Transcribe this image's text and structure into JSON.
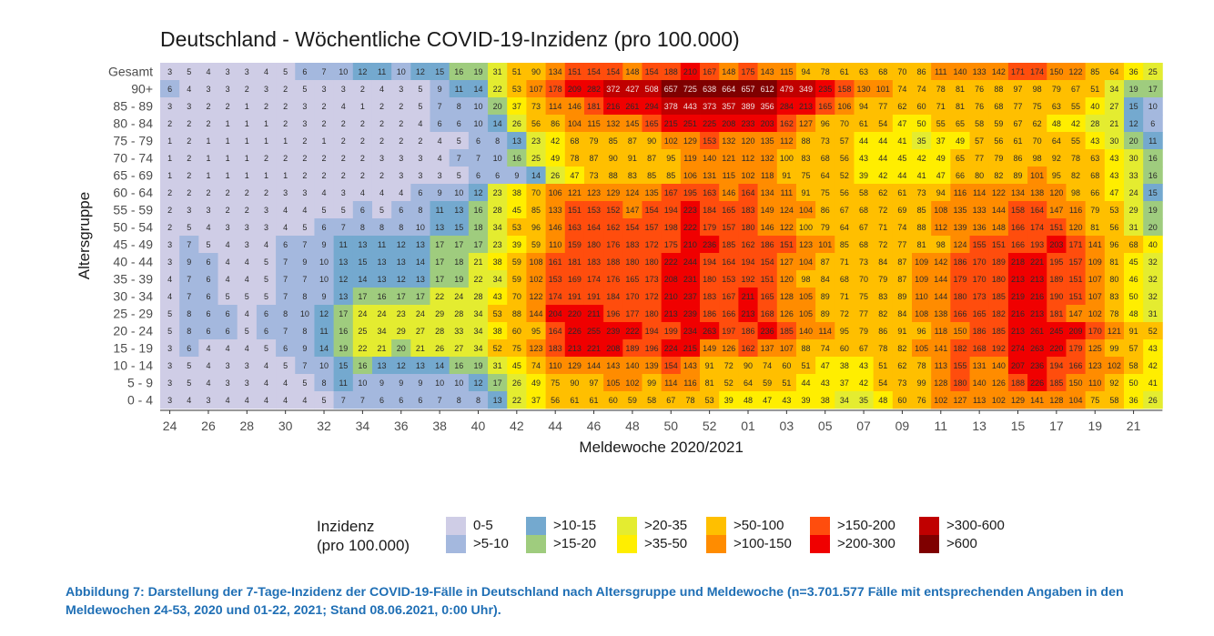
{
  "chart_data": {
    "type": "heatmap",
    "title": "Deutschland - Wöchentliche COVID-19-Inzidenz (pro 100.000)",
    "xlabel": "Meldewoche 2020/2021",
    "ylabel": "Altersgruppe",
    "weeks": [
      "24",
      "25",
      "26",
      "27",
      "28",
      "29",
      "30",
      "31",
      "32",
      "33",
      "34",
      "35",
      "36",
      "37",
      "38",
      "39",
      "40",
      "41",
      "42",
      "43",
      "44",
      "45",
      "46",
      "47",
      "48",
      "49",
      "50",
      "51",
      "52",
      "53",
      "01",
      "02",
      "03",
      "04",
      "05",
      "06",
      "07",
      "08",
      "09",
      "10",
      "11",
      "12",
      "13",
      "14",
      "15",
      "16",
      "17",
      "18",
      "19",
      "20",
      "21",
      "22"
    ],
    "x_tick_labels": [
      "24",
      "26",
      "28",
      "30",
      "32",
      "34",
      "36",
      "38",
      "40",
      "42",
      "44",
      "46",
      "48",
      "50",
      "52",
      "01",
      "03",
      "05",
      "07",
      "09",
      "11",
      "13",
      "15",
      "17",
      "19",
      "21"
    ],
    "rows": [
      {
        "label": "Gesamt",
        "values": [
          3,
          5,
          4,
          3,
          3,
          4,
          5,
          6,
          7,
          10,
          12,
          11,
          10,
          12,
          15,
          16,
          19,
          31,
          51,
          90,
          134,
          151,
          154,
          154,
          148,
          154,
          188,
          210,
          167,
          148,
          175,
          143,
          115,
          94,
          78,
          61,
          63,
          68,
          70,
          86,
          111,
          140,
          133,
          142,
          171,
          174,
          150,
          122,
          85,
          64,
          36,
          25
        ]
      },
      {
        "label": "90+",
        "values": [
          6,
          4,
          3,
          3,
          2,
          3,
          2,
          5,
          3,
          3,
          2,
          4,
          3,
          5,
          9,
          11,
          14,
          22,
          53,
          107,
          178,
          209,
          282,
          372,
          427,
          508,
          657,
          725,
          638,
          664,
          657,
          612,
          479,
          349,
          235,
          158,
          130,
          101,
          74,
          74,
          78,
          81,
          76,
          88,
          97,
          98,
          79,
          67,
          51,
          34,
          19,
          17
        ]
      },
      {
        "label": "85 - 89",
        "values": [
          3,
          3,
          2,
          2,
          1,
          2,
          2,
          3,
          2,
          4,
          1,
          2,
          2,
          5,
          7,
          8,
          10,
          20,
          37,
          73,
          114,
          146,
          181,
          216,
          261,
          294,
          378,
          443,
          373,
          357,
          389,
          356,
          284,
          213,
          165,
          106,
          94,
          77,
          62,
          60,
          71,
          81,
          76,
          68,
          77,
          75,
          63,
          55,
          40,
          27,
          15,
          10
        ]
      },
      {
        "label": "80 - 84",
        "values": [
          2,
          2,
          2,
          1,
          1,
          1,
          2,
          3,
          2,
          2,
          2,
          2,
          2,
          4,
          6,
          6,
          10,
          14,
          26,
          56,
          86,
          104,
          115,
          132,
          145,
          165,
          215,
          251,
          225,
          208,
          233,
          203,
          162,
          127,
          96,
          70,
          61,
          54,
          47,
          50,
          55,
          65,
          58,
          59,
          67,
          62,
          48,
          42,
          28,
          21,
          12,
          6
        ]
      },
      {
        "label": "75 - 79",
        "values": [
          1,
          2,
          1,
          1,
          1,
          1,
          1,
          2,
          1,
          2,
          2,
          2,
          2,
          2,
          4,
          5,
          6,
          8,
          13,
          23,
          42,
          68,
          79,
          85,
          87,
          90,
          102,
          129,
          153,
          132,
          120,
          135,
          112,
          88,
          73,
          57,
          44,
          44,
          41,
          35,
          37,
          49,
          57,
          56,
          61,
          70,
          64,
          55,
          43,
          30,
          20,
          11
        ]
      },
      {
        "label": "70 - 74",
        "values": [
          1,
          2,
          1,
          1,
          1,
          2,
          2,
          2,
          2,
          2,
          2,
          3,
          3,
          3,
          4,
          7,
          7,
          10,
          16,
          25,
          49,
          78,
          87,
          90,
          91,
          87,
          95,
          119,
          140,
          121,
          112,
          132,
          100,
          83,
          68,
          56,
          43,
          44,
          45,
          42,
          49,
          65,
          77,
          79,
          86,
          98,
          92,
          78,
          63,
          43,
          30,
          16
        ]
      },
      {
        "label": "65 - 69",
        "values": [
          1,
          2,
          1,
          1,
          1,
          1,
          1,
          2,
          2,
          2,
          2,
          2,
          3,
          3,
          3,
          5,
          6,
          6,
          9,
          14,
          26,
          47,
          73,
          88,
          83,
          85,
          85,
          106,
          131,
          115,
          102,
          118,
          91,
          75,
          64,
          52,
          39,
          42,
          44,
          41,
          47,
          66,
          80,
          82,
          89,
          101,
          95,
          82,
          68,
          43,
          33,
          16
        ]
      },
      {
        "label": "60 - 64",
        "values": [
          2,
          2,
          2,
          2,
          2,
          2,
          3,
          3,
          4,
          3,
          4,
          4,
          4,
          6,
          9,
          10,
          12,
          23,
          38,
          70,
          106,
          121,
          123,
          129,
          124,
          135,
          167,
          195,
          163,
          146,
          164,
          134,
          111,
          91,
          75,
          56,
          58,
          62,
          61,
          73,
          94,
          116,
          114,
          122,
          134,
          138,
          120,
          98,
          66,
          47,
          24,
          15
        ]
      },
      {
        "label": "55 - 59",
        "values": [
          2,
          3,
          3,
          2,
          2,
          3,
          4,
          4,
          5,
          5,
          6,
          5,
          6,
          8,
          11,
          13,
          16,
          28,
          45,
          85,
          133,
          151,
          153,
          152,
          147,
          154,
          194,
          223,
          184,
          165,
          183,
          149,
          124,
          104,
          86,
          67,
          68,
          72,
          69,
          85,
          108,
          135,
          133,
          144,
          158,
          164,
          147,
          116,
          79,
          53,
          29,
          19
        ]
      },
      {
        "label": "50 - 54",
        "values": [
          2,
          5,
          4,
          3,
          3,
          3,
          4,
          5,
          6,
          7,
          8,
          8,
          8,
          10,
          13,
          15,
          18,
          34,
          53,
          96,
          146,
          163,
          164,
          162,
          154,
          157,
          198,
          222,
          179,
          157,
          180,
          146,
          122,
          100,
          79,
          64,
          67,
          71,
          74,
          88,
          112,
          139,
          136,
          148,
          166,
          174,
          151,
          120,
          81,
          56,
          31,
          20
        ]
      },
      {
        "label": "45 - 49",
        "values": [
          3,
          7,
          5,
          4,
          3,
          4,
          6,
          7,
          9,
          11,
          13,
          11,
          12,
          13,
          17,
          17,
          17,
          23,
          39,
          59,
          110,
          159,
          180,
          176,
          183,
          172,
          175,
          210,
          236,
          185,
          162,
          186,
          151,
          123,
          101,
          85,
          68,
          72,
          77,
          81,
          98,
          124,
          155,
          151,
          166,
          193,
          203,
          171,
          141,
          96,
          68,
          40
        ]
      },
      {
        "label": "40 - 44",
        "values": [
          3,
          9,
          6,
          4,
          4,
          5,
          7,
          9,
          10,
          13,
          15,
          13,
          13,
          14,
          17,
          18,
          21,
          38,
          59,
          108,
          161,
          181,
          183,
          188,
          180,
          180,
          222,
          244,
          194,
          164,
          194,
          154,
          127,
          104,
          87,
          71,
          73,
          84,
          87,
          109,
          142,
          186,
          170,
          189,
          218,
          221,
          195,
          157,
          109,
          81,
          45,
          32
        ]
      },
      {
        "label": "35 - 39",
        "values": [
          4,
          7,
          6,
          4,
          4,
          5,
          7,
          7,
          10,
          12,
          14,
          13,
          12,
          13,
          17,
          19,
          22,
          34,
          59,
          102,
          153,
          169,
          174,
          176,
          165,
          173,
          208,
          231,
          180,
          153,
          192,
          151,
          120,
          98,
          84,
          68,
          70,
          79,
          87,
          109,
          144,
          179,
          170,
          180,
          213,
          213,
          189,
          151,
          107,
          80,
          46,
          32
        ]
      },
      {
        "label": "30 - 34",
        "values": [
          4,
          7,
          6,
          5,
          5,
          5,
          7,
          8,
          9,
          13,
          17,
          16,
          17,
          17,
          22,
          24,
          28,
          43,
          70,
          122,
          174,
          191,
          191,
          184,
          170,
          172,
          210,
          237,
          183,
          167,
          211,
          165,
          128,
          105,
          89,
          71,
          75,
          83,
          89,
          110,
          144,
          180,
          173,
          185,
          219,
          216,
          190,
          151,
          107,
          83,
          50,
          32
        ]
      },
      {
        "label": "25 - 29",
        "values": [
          5,
          8,
          6,
          6,
          4,
          6,
          8,
          10,
          12,
          17,
          24,
          24,
          23,
          24,
          29,
          28,
          34,
          53,
          88,
          144,
          204,
          220,
          211,
          196,
          177,
          180,
          213,
          239,
          186,
          166,
          213,
          168,
          126,
          105,
          89,
          72,
          77,
          82,
          84,
          108,
          138,
          166,
          165,
          182,
          216,
          213,
          181,
          147,
          102,
          78,
          48,
          31
        ]
      },
      {
        "label": "20 - 24",
        "values": [
          5,
          8,
          6,
          6,
          5,
          6,
          7,
          8,
          11,
          16,
          25,
          34,
          29,
          27,
          28,
          33,
          34,
          38,
          60,
          95,
          164,
          226,
          255,
          239,
          222,
          194,
          199,
          234,
          263,
          197,
          186,
          236,
          185,
          140,
          114,
          95,
          79,
          86,
          91,
          96,
          118,
          150,
          186,
          185,
          213,
          261,
          245,
          209,
          170,
          121,
          91,
          52
        ]
      },
      {
        "label": "15 - 19",
        "values": [
          3,
          6,
          4,
          4,
          4,
          5,
          6,
          9,
          14,
          19,
          22,
          21,
          20,
          21,
          26,
          27,
          34,
          52,
          75,
          123,
          183,
          213,
          221,
          208,
          189,
          196,
          224,
          215,
          149,
          126,
          162,
          137,
          107,
          88,
          74,
          60,
          67,
          78,
          82,
          105,
          141,
          182,
          168,
          192,
          274,
          263,
          220,
          179,
          125,
          99,
          57,
          43
        ]
      },
      {
        "label": "10 - 14",
        "values": [
          3,
          5,
          4,
          3,
          3,
          4,
          5,
          7,
          10,
          15,
          16,
          13,
          12,
          13,
          14,
          16,
          19,
          31,
          45,
          74,
          110,
          129,
          144,
          143,
          140,
          139,
          154,
          143,
          91,
          72,
          90,
          74,
          60,
          51,
          47,
          38,
          43,
          51,
          62,
          78,
          113,
          155,
          131,
          140,
          207,
          236,
          194,
          166,
          123,
          102,
          58,
          42
        ]
      },
      {
        "label": "5 - 9",
        "values": [
          3,
          5,
          4,
          3,
          3,
          4,
          4,
          5,
          8,
          11,
          10,
          9,
          9,
          9,
          10,
          10,
          12,
          17,
          26,
          49,
          75,
          90,
          97,
          105,
          102,
          99,
          114,
          116,
          81,
          52,
          64,
          59,
          51,
          44,
          43,
          37,
          42,
          54,
          73,
          99,
          128,
          180,
          140,
          126,
          188,
          226,
          185,
          150,
          110,
          92,
          50,
          41
        ]
      },
      {
        "label": "0 - 4",
        "values": [
          3,
          4,
          3,
          4,
          4,
          4,
          4,
          4,
          5,
          7,
          7,
          6,
          6,
          6,
          7,
          8,
          8,
          13,
          22,
          37,
          56,
          61,
          61,
          60,
          59,
          58,
          67,
          78,
          53,
          39,
          48,
          47,
          43,
          39,
          38,
          34,
          35,
          48,
          60,
          76,
          102,
          127,
          113,
          102,
          129,
          141,
          128,
          104,
          75,
          58,
          36,
          26
        ]
      }
    ],
    "legend": {
      "title_line1": "Inzidenz",
      "title_line2": "(pro 100.000)",
      "bins": [
        {
          "label": "0-5",
          "color": "#cfcde6"
        },
        {
          "label": ">5-10",
          "color": "#a4b8de"
        },
        {
          "label": ">10-15",
          "color": "#74a9cf"
        },
        {
          "label": ">15-20",
          "color": "#9fcc7e"
        },
        {
          "label": ">20-35",
          "color": "#e4ec30"
        },
        {
          "label": ">35-50",
          "color": "#ffee00"
        },
        {
          "label": ">50-100",
          "color": "#ffbf00"
        },
        {
          "label": ">100-150",
          "color": "#ff8c00"
        },
        {
          "label": ">150-200",
          "color": "#ff4d0d"
        },
        {
          "label": ">200-300",
          "color": "#f00000"
        },
        {
          "label": ">300-600",
          "color": "#c00000"
        },
        {
          "label": ">600",
          "color": "#7f0000"
        }
      ]
    }
  },
  "caption": "Abbildung 7: Darstellung der 7-Tage-Inzidenz der COVID-19-Fälle in Deutschland nach Altersgruppe und Meldewoche (n=3.701.577 Fälle mit entsprechenden Angaben in den Meldewochen 24-53, 2020 und 01-22, 2021; Stand 08.06.2021, 0:00 Uhr)."
}
